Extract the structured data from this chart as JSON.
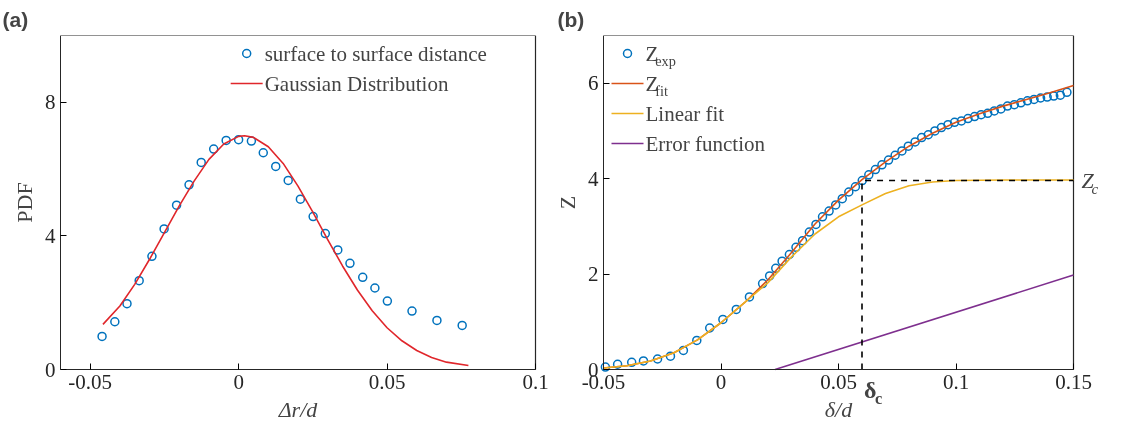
{
  "chart_data": [
    {
      "type": "line",
      "title": "(a)",
      "xlabel": "Δr/d",
      "ylabel": "PDF",
      "xlim": [
        -0.06,
        0.1
      ],
      "ylim": [
        0,
        10
      ],
      "xticks": [
        -0.05,
        0,
        0.05,
        0.1
      ],
      "yticks": [
        0,
        4,
        8
      ],
      "grid": false,
      "legend": "top right",
      "series": [
        {
          "name": "surface to surface distance",
          "type": "scatter",
          "marker": "circle",
          "color": "#0072bd",
          "x": [
            -0.046,
            -0.0417,
            -0.0376,
            -0.0335,
            -0.0292,
            -0.0251,
            -0.0209,
            -0.0167,
            -0.0126,
            -0.0084,
            -0.0042,
            0,
            0.0043,
            0.0083,
            0.0125,
            0.0167,
            0.0208,
            0.0251,
            0.0292,
            0.0334,
            0.0375,
            0.0418,
            0.0459,
            0.0501,
            0.0584,
            0.0668,
            0.0753
          ],
          "values": [
            0.99,
            1.43,
            1.97,
            2.66,
            3.39,
            4.21,
            4.92,
            5.53,
            6.2,
            6.6,
            6.86,
            6.88,
            6.84,
            6.49,
            6.08,
            5.66,
            5.1,
            4.58,
            4.07,
            3.58,
            3.18,
            2.76,
            2.44,
            2.05,
            1.75,
            1.47,
            1.32
          ]
        },
        {
          "name": "Gaussian Distribution",
          "color": "#e0262b",
          "x": [
            -0.0457,
            -0.04,
            -0.035,
            -0.03,
            -0.025,
            -0.02,
            -0.015,
            -0.01,
            -0.005,
            0,
            0.002,
            0.005,
            0.01,
            0.015,
            0.02,
            0.025,
            0.03,
            0.035,
            0.04,
            0.045,
            0.05,
            0.055,
            0.06,
            0.065,
            0.07,
            0.0774
          ],
          "values": [
            1.35,
            1.9,
            2.55,
            3.3,
            4.1,
            4.9,
            5.64,
            6.29,
            6.75,
            6.98,
            7.0,
            6.95,
            6.67,
            6.17,
            5.49,
            4.71,
            3.89,
            3.1,
            2.38,
            1.76,
            1.25,
            0.86,
            0.57,
            0.36,
            0.22,
            0.12
          ]
        }
      ]
    },
    {
      "type": "line",
      "title": "(b)",
      "xlabel": "δ/d",
      "ylabel": "Z",
      "xlim": [
        -0.05,
        0.15
      ],
      "ylim": [
        0,
        7
      ],
      "xticks": [
        -0.05,
        0,
        0.05,
        0.1,
        0.15
      ],
      "yticks": [
        0,
        2,
        4,
        6
      ],
      "grid": false,
      "legend": "top left",
      "annotations": [
        {
          "text": "δ$_{c}$",
          "x": 0.06,
          "y": 0
        },
        {
          "text": "Z$_{c}$",
          "x": 0.15,
          "y": 3.96
        }
      ],
      "series": [
        {
          "name": "Z$_{exp}$",
          "type": "scatter",
          "marker": "circle",
          "color": "#0072bd",
          "x": [
            -0.0492,
            -0.044,
            -0.038,
            -0.033,
            -0.027,
            -0.0215,
            -0.016,
            -0.0103,
            -0.0048,
            0.0008,
            0.0065,
            0.0121,
            0.0177,
            0.0207,
            0.0233,
            0.026,
            0.0291,
            0.0319,
            0.0347,
            0.0376,
            0.0404,
            0.0432,
            0.046,
            0.0488,
            0.0516,
            0.0544,
            0.0572,
            0.0601,
            0.0629,
            0.0657,
            0.0685,
            0.0713,
            0.0741,
            0.077,
            0.0797,
            0.0826,
            0.0854,
            0.0882,
            0.091,
            0.0938,
            0.0966,
            0.0994,
            0.1023,
            0.1051,
            0.1079,
            0.1107,
            0.1135,
            0.1163,
            0.1191,
            0.1219,
            0.1248,
            0.1276,
            0.1304,
            0.1332,
            0.136,
            0.1388,
            0.1416,
            0.1444,
            0.1472
          ],
          "values": [
            0.05,
            0.11,
            0.15,
            0.18,
            0.22,
            0.28,
            0.4,
            0.61,
            0.87,
            1.05,
            1.26,
            1.52,
            1.8,
            1.96,
            2.12,
            2.27,
            2.41,
            2.56,
            2.7,
            2.88,
            3.04,
            3.2,
            3.32,
            3.45,
            3.58,
            3.72,
            3.83,
            3.96,
            4.08,
            4.19,
            4.29,
            4.39,
            4.49,
            4.58,
            4.68,
            4.77,
            4.86,
            4.92,
            5.0,
            5.07,
            5.13,
            5.18,
            5.21,
            5.26,
            5.3,
            5.34,
            5.37,
            5.42,
            5.46,
            5.52,
            5.55,
            5.59,
            5.63,
            5.66,
            5.69,
            5.71,
            5.73,
            5.75,
            5.81
          ]
        },
        {
          "name": "Z$_{fit}$",
          "color": "#d95319",
          "x": [
            -0.05,
            -0.04,
            -0.03,
            -0.02,
            -0.01,
            0,
            0.01,
            0.02,
            0.03,
            0.04,
            0.05,
            0.06,
            0.07,
            0.08,
            0.09,
            0.1,
            0.11,
            0.12,
            0.13,
            0.14,
            0.15
          ],
          "values": [
            0.03,
            0.08,
            0.18,
            0.35,
            0.62,
            0.98,
            1.4,
            1.88,
            2.45,
            3.05,
            3.55,
            3.98,
            4.35,
            4.68,
            4.95,
            5.18,
            5.36,
            5.52,
            5.66,
            5.8,
            5.95
          ]
        },
        {
          "name": "Linear fit",
          "color": "#edb120",
          "x": [
            -0.05,
            -0.04,
            -0.03,
            -0.02,
            -0.01,
            0,
            0.01,
            0.02,
            0.03,
            0.04,
            0.05,
            0.06,
            0.07,
            0.08,
            0.09,
            0.1,
            0.12,
            0.15
          ],
          "values": [
            0.03,
            0.08,
            0.18,
            0.35,
            0.62,
            0.98,
            1.4,
            1.82,
            2.36,
            2.84,
            3.2,
            3.45,
            3.69,
            3.85,
            3.93,
            3.96,
            3.97,
            3.97
          ]
        },
        {
          "name": "Error function",
          "color": "#7e2f8e",
          "x": [
            0.023,
            0.15
          ],
          "values": [
            0,
            1.98
          ]
        },
        {
          "color": "#000000",
          "line_style": "dashed",
          "x": [
            0.06,
            0.06,
            0.15
          ],
          "values": [
            0,
            3.96,
            3.96
          ]
        }
      ]
    }
  ]
}
